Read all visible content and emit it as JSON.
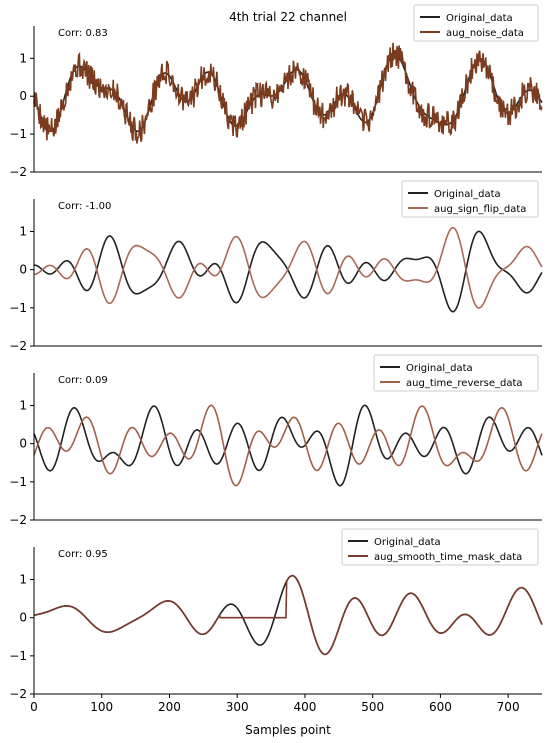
{
  "figure": {
    "title": "4th trial 22 channel",
    "xlabel": "Samples point"
  },
  "colors": {
    "original": "#222222",
    "noise": "#7a3b1e",
    "sign_flip": "#a86a58",
    "time_reverse": "#a0604a",
    "smooth_mask": "#7a3b2e",
    "highlight_red": "#d02020",
    "highlight_green": "#3a6a1a"
  },
  "chart_data": [
    {
      "type": "line",
      "corr_label": "Corr: 0.83",
      "legend": [
        "Original_data",
        "aug_noise_data"
      ],
      "legend_position": "top-right",
      "xlim": [
        0,
        750
      ],
      "ylim": [
        -2,
        1.8
      ],
      "yticks": [
        -2,
        -1,
        0,
        1
      ],
      "series": [
        {
          "name": "Original_data",
          "color_key": "original",
          "generator": {
            "seed": 11,
            "amp": 0.55,
            "n": 751
          }
        },
        {
          "name": "aug_noise_data",
          "color_key": "noise",
          "derive": "noise",
          "noise_seed": 5,
          "noise_amp": 0.35
        }
      ]
    },
    {
      "type": "line",
      "corr_label": "Corr: -1.00",
      "legend": [
        "Original_data",
        "aug_sign_flip_data"
      ],
      "legend_position": "top-right",
      "xlim": [
        0,
        750
      ],
      "ylim": [
        -2,
        1.8
      ],
      "yticks": [
        -2,
        -1,
        0,
        1
      ],
      "series": [
        {
          "name": "Original_data",
          "color_key": "original",
          "generator": {
            "seed": 23,
            "amp": 0.55,
            "n": 751
          }
        },
        {
          "name": "aug_sign_flip_data",
          "color_key": "sign_flip",
          "derive": "flip"
        }
      ]
    },
    {
      "type": "line",
      "corr_label": "Corr: 0.09",
      "legend": [
        "Original_data",
        "aug_time_reverse_data"
      ],
      "legend_position": "top-right",
      "xlim": [
        0,
        750
      ],
      "ylim": [
        -2,
        1.8
      ],
      "yticks": [
        -2,
        -1,
        0,
        1
      ],
      "series": [
        {
          "name": "Original_data",
          "color_key": "original",
          "generator": {
            "seed": 37,
            "amp": 0.55,
            "n": 751
          }
        },
        {
          "name": "aug_time_reverse_data",
          "color_key": "time_reverse",
          "derive": "reverse"
        }
      ]
    },
    {
      "type": "line",
      "corr_label": "Corr: 0.95",
      "legend": [
        "Original_data",
        "aug_smooth_time_mask_data"
      ],
      "legend_position": "top-right",
      "xlim": [
        0,
        750
      ],
      "ylim": [
        -2,
        1.8
      ],
      "yticks": [
        -2,
        -1,
        0,
        1
      ],
      "xticks": [
        0,
        100,
        200,
        300,
        400,
        500,
        600,
        700
      ],
      "series": [
        {
          "name": "Original_data",
          "color_key": "original",
          "generator": {
            "seed": 49,
            "amp": 0.55,
            "n": 751
          }
        },
        {
          "name": "aug_smooth_time_mask_data",
          "color_key": "smooth_mask",
          "derive": "mask",
          "mask_range": [
            275,
            372
          ]
        }
      ]
    }
  ]
}
